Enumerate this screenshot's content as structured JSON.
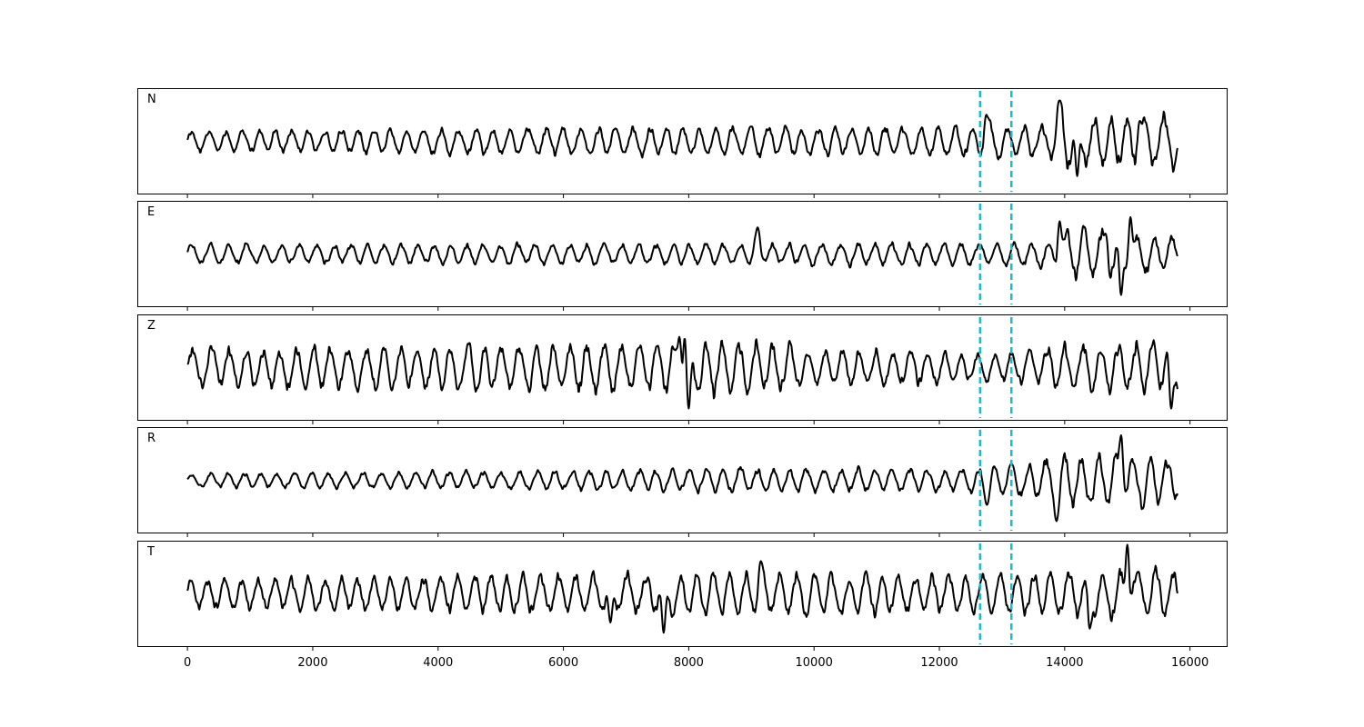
{
  "chart_data": {
    "type": "line",
    "x_ticks": [
      0,
      2000,
      4000,
      6000,
      8000,
      10000,
      12000,
      14000,
      16000
    ],
    "x_tick_labels": [
      "0",
      "2000",
      "4000",
      "6000",
      "8000",
      "10000",
      "12000",
      "14000",
      "16000"
    ],
    "xlim": [
      -800,
      16600
    ],
    "x_extent": [
      0,
      15800
    ],
    "shared_x_axis": true,
    "y_axis_ticks": "hidden",
    "grid": false,
    "markers": {
      "style": "dashed",
      "color": "#17becf",
      "x": [
        12650,
        13150
      ]
    },
    "trace_color": "#000000",
    "panels": [
      {
        "label": "N",
        "ylim": [
          -1.3,
          1.3
        ],
        "envelope": [
          [
            0,
            0.28
          ],
          [
            8000,
            0.38
          ],
          [
            12600,
            0.38
          ],
          [
            12800,
            0.55
          ],
          [
            13100,
            0.35
          ],
          [
            13800,
            0.45
          ],
          [
            13950,
            1.0
          ],
          [
            14300,
            0.65
          ],
          [
            15800,
            0.7
          ]
        ],
        "seed": 11,
        "highlights": [
          [
            13920,
            1.0
          ],
          [
            14200,
            -0.85
          ],
          [
            15200,
            0.5
          ],
          [
            12750,
            0.65
          ]
        ]
      },
      {
        "label": "E",
        "ylim": [
          -1.3,
          1.3
        ],
        "envelope": [
          [
            0,
            0.25
          ],
          [
            9000,
            0.28
          ],
          [
            12600,
            0.3
          ],
          [
            13800,
            0.35
          ],
          [
            14000,
            0.65
          ],
          [
            14800,
            0.7
          ],
          [
            15200,
            0.55
          ],
          [
            15800,
            0.4
          ]
        ],
        "seed": 23,
        "highlights": [
          [
            9100,
            0.65
          ],
          [
            13920,
            0.8
          ],
          [
            14900,
            -1.0
          ],
          [
            15050,
            0.9
          ],
          [
            14650,
            0.5
          ]
        ]
      },
      {
        "label": "Z",
        "ylim": [
          -1.3,
          1.3
        ],
        "envelope": [
          [
            0,
            0.5
          ],
          [
            3000,
            0.55
          ],
          [
            6000,
            0.65
          ],
          [
            8000,
            0.75
          ],
          [
            9000,
            0.7
          ],
          [
            10000,
            0.5
          ],
          [
            12000,
            0.45
          ],
          [
            13000,
            0.35
          ],
          [
            14000,
            0.6
          ],
          [
            15800,
            0.7
          ]
        ],
        "seed": 37,
        "highlights": [
          [
            7950,
            1.1
          ],
          [
            8000,
            -1.0
          ],
          [
            7850,
            0.75
          ],
          [
            15700,
            -1.0
          ]
        ]
      },
      {
        "label": "R",
        "ylim": [
          -1.3,
          1.3
        ],
        "envelope": [
          [
            0,
            0.18
          ],
          [
            6000,
            0.25
          ],
          [
            9000,
            0.32
          ],
          [
            12500,
            0.32
          ],
          [
            13500,
            0.45
          ],
          [
            14000,
            0.7
          ],
          [
            15000,
            0.75
          ],
          [
            15800,
            0.55
          ]
        ],
        "seed": 53,
        "highlights": [
          [
            14900,
            1.1
          ],
          [
            13870,
            -1.0
          ],
          [
            12760,
            -0.6
          ],
          [
            13150,
            0.4
          ]
        ]
      },
      {
        "label": "T",
        "ylim": [
          -1.3,
          1.3
        ],
        "envelope": [
          [
            0,
            0.4
          ],
          [
            7500,
            0.55
          ],
          [
            9000,
            0.55
          ],
          [
            12000,
            0.5
          ],
          [
            13200,
            0.55
          ],
          [
            14000,
            0.6
          ],
          [
            15000,
            0.75
          ],
          [
            15800,
            0.55
          ]
        ],
        "seed": 71,
        "highlights": [
          [
            15000,
            1.2
          ],
          [
            7600,
            -0.95
          ],
          [
            6750,
            -0.7
          ],
          [
            14400,
            -0.85
          ],
          [
            9150,
            0.8
          ]
        ]
      }
    ]
  }
}
